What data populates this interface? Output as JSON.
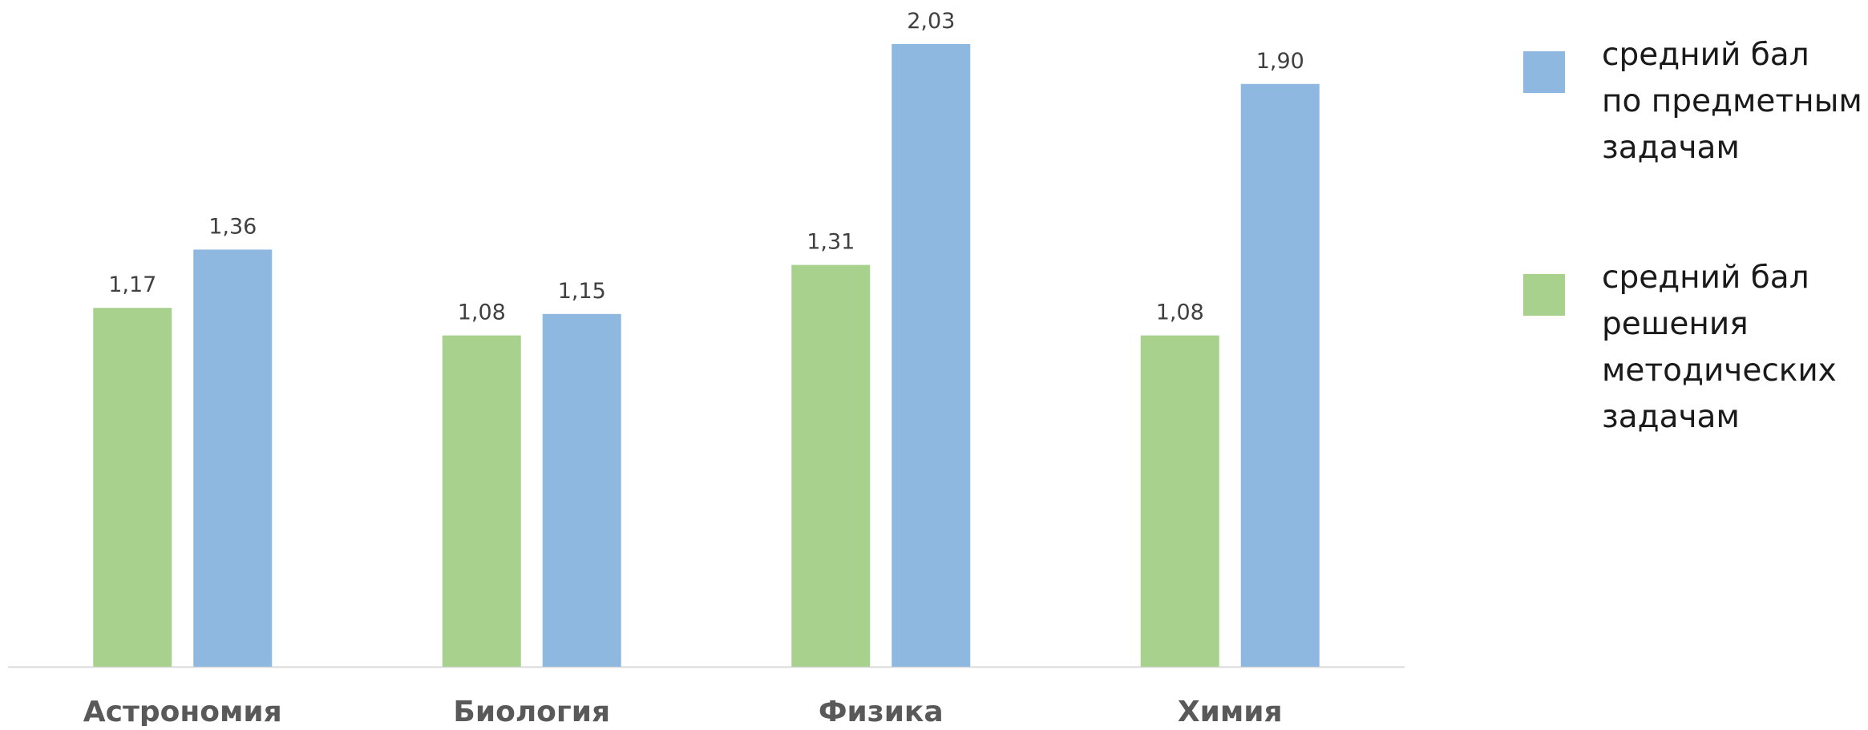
{
  "chart_data": {
    "type": "bar",
    "categories": [
      "Астрономия",
      "Биология",
      "Физика",
      "Химия"
    ],
    "series": [
      {
        "name": "средний бал решения методических задачам",
        "label_lines": [
          "средний бал",
          "решения",
          "методических",
          "задачам"
        ],
        "color": "#A9D18E",
        "values": [
          1.17,
          1.08,
          1.31,
          1.08
        ],
        "labels": [
          "1,17",
          "1,08",
          "1,31",
          "1,08"
        ]
      },
      {
        "name": "средний бал по предметным задачам",
        "label_lines": [
          "средний бал",
          "по предметным",
          "задачам"
        ],
        "color": "#8FB8E0",
        "values": [
          1.36,
          1.15,
          2.03,
          1.9
        ],
        "labels": [
          "1,36",
          "1,15",
          "2,03",
          "1,90"
        ]
      }
    ],
    "legend_order": [
      1,
      0
    ],
    "legend_position": "right",
    "ylim": [
      0,
      2.1
    ],
    "grid": false,
    "axis_color": "#D9D9D9",
    "title": "",
    "xlabel": "",
    "ylabel": ""
  }
}
